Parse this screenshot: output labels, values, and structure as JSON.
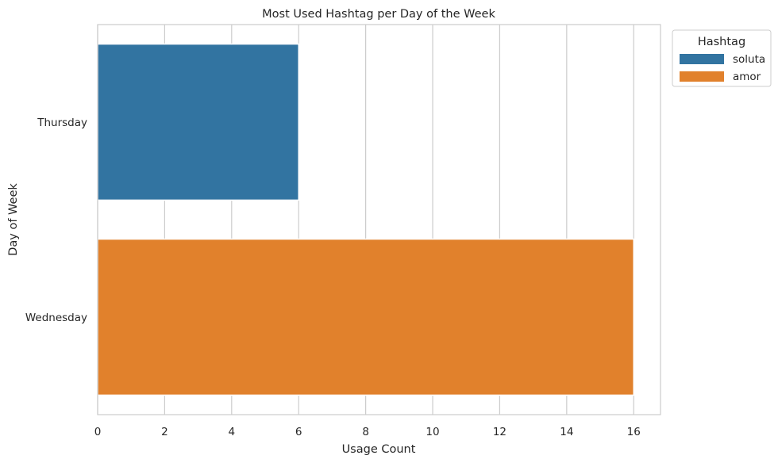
{
  "chart_data": {
    "type": "bar",
    "orientation": "horizontal",
    "title": "Most Used Hashtag per Day of the Week",
    "xlabel": "Usage Count",
    "ylabel": "Day of Week",
    "categories": [
      "Thursday",
      "Wednesday"
    ],
    "xlim": [
      0,
      16.8
    ],
    "xticks": [
      0,
      2,
      4,
      6,
      8,
      10,
      12,
      14,
      16
    ],
    "grid": true,
    "bars": [
      {
        "category": "Thursday",
        "value": 6,
        "hashtag": "soluta",
        "color": "#3274a1"
      },
      {
        "category": "Wednesday",
        "value": 16,
        "hashtag": "amor",
        "color": "#e1812c"
      }
    ],
    "legend": {
      "title": "Hashtag",
      "placement": "outside-top-right",
      "entries": [
        {
          "label": "soluta",
          "color": "#3274a1"
        },
        {
          "label": "amor",
          "color": "#e1812c"
        }
      ]
    }
  }
}
